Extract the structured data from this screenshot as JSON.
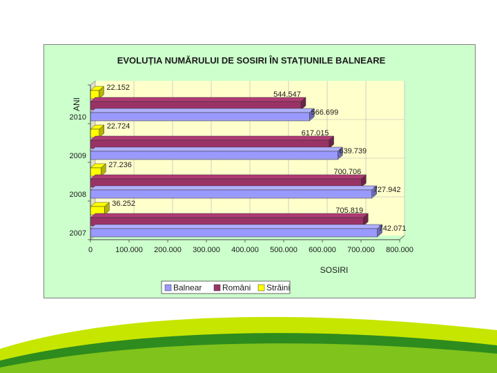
{
  "colors": {
    "plot_bg": "#ffffcc",
    "frame_bg": "#ccffcc",
    "grid": "#b0b0b0",
    "wave_light": "#c6e600",
    "wave_dark": "#2e8b1e"
  },
  "chart_data": {
    "type": "bar",
    "orientation": "horizontal",
    "three_d": true,
    "title": "EVOLUȚIA NUMĂRULUI DE SOSIRI ÎN STAȚIUNILE BALNEARE",
    "xlabel": "SOSIRI",
    "ylabel": "ANI",
    "xlim": [
      0,
      800000
    ],
    "x_ticks": [
      "0",
      "100.000",
      "200.000",
      "300.000",
      "400.000",
      "500.000",
      "600.000",
      "700.000",
      "800.000"
    ],
    "grid": true,
    "legend_position": "bottom",
    "categories": [
      "2010",
      "2009",
      "2008",
      "2007"
    ],
    "series": [
      {
        "name": "Balnear",
        "color": "#9999ff",
        "values": [
          566699,
          639739,
          727942,
          742071
        ],
        "labels": [
          "566.699",
          "639.739",
          "727.942",
          "742.071"
        ]
      },
      {
        "name": "Români",
        "color": "#993366",
        "values": [
          544547,
          617015,
          700706,
          705819
        ],
        "labels": [
          "544.547",
          "617.015",
          "700.706",
          "705.819"
        ]
      },
      {
        "name": "Străini",
        "color": "#ffff00",
        "values": [
          22152,
          22724,
          27236,
          36252
        ],
        "labels": [
          "22.152",
          "22.724",
          "27.236",
          "36.252"
        ]
      }
    ]
  }
}
